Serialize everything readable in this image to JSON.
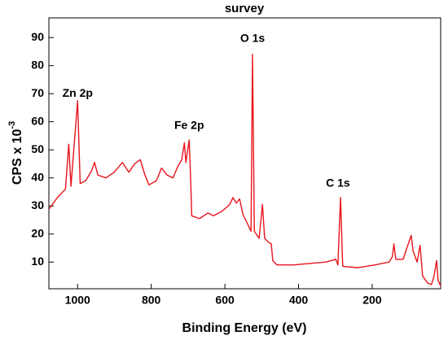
{
  "chart_data": {
    "type": "line",
    "title": "survey",
    "xlabel": "Binding Energy (eV)",
    "ylabel": "CPS x 10",
    "ylabel_exponent": "-3",
    "x": [
      1077,
      1055,
      1033,
      1024,
      1018,
      1000,
      993,
      978,
      962,
      954,
      945,
      923,
      901,
      878,
      861,
      845,
      830,
      817,
      806,
      786,
      772,
      757,
      741,
      728,
      717,
      710,
      706,
      697,
      693,
      690,
      669,
      646,
      631,
      609,
      587,
      578,
      569,
      560,
      551,
      538,
      529,
      525,
      520,
      507,
      498,
      492,
      481,
      474,
      470,
      459,
      414,
      370,
      326,
      299,
      293,
      286,
      280,
      238,
      193,
      154,
      145,
      141,
      136,
      116,
      98,
      94,
      89,
      78,
      70,
      63,
      49,
      39,
      32,
      25,
      21,
      14
    ],
    "values": [
      29,
      33,
      36,
      52,
      37,
      67.5,
      38,
      39,
      42.5,
      45.5,
      41,
      40,
      42,
      45.5,
      42,
      45,
      46.5,
      41,
      37.5,
      39,
      43.5,
      41,
      40,
      44,
      46.5,
      52.5,
      45.5,
      53.5,
      39.5,
      26.5,
      25.5,
      27.5,
      26.5,
      28,
      30.5,
      33,
      31,
      32.5,
      27,
      23.5,
      21,
      84,
      21,
      18.5,
      30.5,
      18.5,
      17,
      16.5,
      10.5,
      9,
      9,
      9.5,
      10,
      11,
      9,
      33,
      8.5,
      8,
      9,
      10,
      12,
      16.5,
      11,
      11,
      18,
      19.5,
      14,
      10,
      16,
      5,
      2.5,
      2,
      5,
      10.5,
      3.5,
      1.5
    ],
    "color": "#e8141c",
    "xlim": [
      1078,
      14
    ],
    "xticks": [
      1000,
      800,
      600,
      400,
      200
    ],
    "ylim": [
      0.5,
      97
    ],
    "yticks": [
      10,
      20,
      30,
      40,
      50,
      60,
      70,
      80,
      90
    ],
    "annotations": [
      {
        "text": "Zn 2p",
        "x": 1000,
        "y": 70
      },
      {
        "text": "Fe 2p",
        "x": 697,
        "y": 58.5
      },
      {
        "text": "O 1s",
        "x": 525,
        "y": 89.5
      },
      {
        "text": "C 1s",
        "x": 293,
        "y": 38
      }
    ]
  }
}
